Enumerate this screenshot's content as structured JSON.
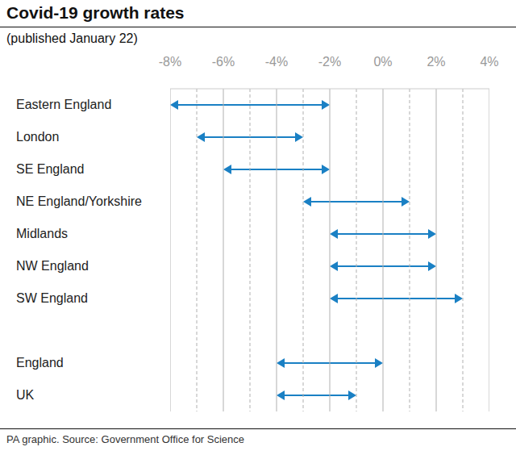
{
  "chart_data": {
    "type": "range",
    "orientation": "horizontal",
    "title": "Covid-19 growth rates",
    "subtitle": "(published January 22)",
    "source": "PA graphic. Source: Government Office for Science",
    "categories": [
      "Eastern England",
      "London",
      "SE England",
      "NE England/Yorkshire",
      "Midlands",
      "NW England",
      "SW England",
      null,
      "England",
      "UK"
    ],
    "values": [
      [
        -8,
        -2
      ],
      [
        -7,
        -3
      ],
      [
        -6,
        -2
      ],
      [
        -3,
        1
      ],
      [
        -2,
        2
      ],
      [
        -2,
        2
      ],
      [
        -2,
        3
      ],
      null,
      [
        -4,
        0
      ],
      [
        -4,
        -1
      ]
    ],
    "color": "#1a80c4",
    "marker": "arrow",
    "xlim": [
      -8,
      4
    ],
    "xticks": [
      {
        "value": -8,
        "label": "-8%"
      },
      {
        "value": -6,
        "label": "-6%"
      },
      {
        "value": -4,
        "label": "-4%"
      },
      {
        "value": -2,
        "label": "-2%"
      },
      {
        "value": 0,
        "label": "0%"
      },
      {
        "value": 2,
        "label": "2%"
      },
      {
        "value": 4,
        "label": "4%"
      }
    ],
    "grid": true
  }
}
